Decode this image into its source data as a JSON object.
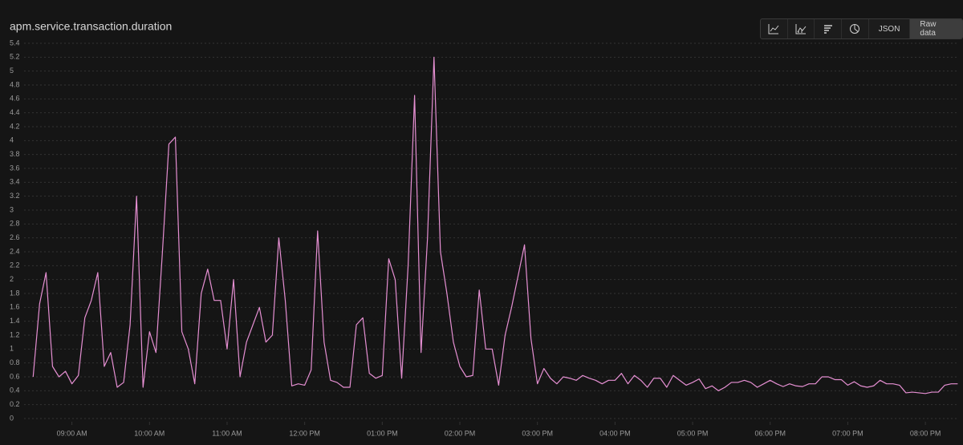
{
  "title": "apm.service.transaction.duration",
  "toolbar": [
    "JSON",
    "Raw data"
  ],
  "chart_data": {
    "type": "line",
    "grid": true,
    "series": [
      {
        "color": "#e58fd2",
        "values": [
          0.6,
          1.65,
          2.1,
          0.75,
          0.6,
          0.68,
          0.5,
          0.62,
          1.45,
          1.7,
          2.1,
          0.75,
          0.95,
          0.45,
          0.52,
          1.35,
          3.2,
          0.45,
          1.25,
          0.95,
          2.4,
          3.95,
          4.05,
          1.25,
          1.0,
          0.5,
          1.8,
          2.15,
          1.7,
          1.7,
          1.0,
          2.0,
          0.6,
          1.1,
          1.35,
          1.6,
          1.1,
          1.2,
          2.6,
          1.7,
          0.47,
          0.5,
          0.48,
          0.7,
          2.7,
          1.1,
          0.55,
          0.52,
          0.45,
          0.45,
          1.35,
          1.45,
          0.65,
          0.58,
          0.62,
          2.3,
          2.0,
          0.58,
          2.2,
          4.65,
          0.95,
          2.6,
          5.2,
          2.4,
          1.8,
          1.1,
          0.75,
          0.6,
          0.62,
          1.85,
          1.0,
          1.0,
          0.48,
          1.2,
          1.6,
          2.05,
          2.5,
          1.15,
          0.5,
          0.72,
          0.58,
          0.5,
          0.6,
          0.58,
          0.55,
          0.62,
          0.58,
          0.55,
          0.5,
          0.55,
          0.55,
          0.65,
          0.5,
          0.62,
          0.55,
          0.45,
          0.58,
          0.58,
          0.45,
          0.62,
          0.55,
          0.48,
          0.52,
          0.57,
          0.43,
          0.47,
          0.4,
          0.45,
          0.52,
          0.52,
          0.55,
          0.52,
          0.45,
          0.5,
          0.55,
          0.5,
          0.46,
          0.5,
          0.47,
          0.46,
          0.5,
          0.5,
          0.6,
          0.6,
          0.56,
          0.56,
          0.48,
          0.53,
          0.47,
          0.45,
          0.47,
          0.55,
          0.5,
          0.5,
          0.48,
          0.37,
          0.38,
          0.37,
          0.36,
          0.38,
          0.38,
          0.48,
          0.5,
          0.5
        ]
      }
    ],
    "x": [
      510,
      515,
      520,
      525,
      530,
      535,
      540,
      545,
      550,
      555,
      560,
      565,
      570,
      575,
      580,
      585,
      590,
      595,
      600,
      605,
      610,
      615,
      620,
      625,
      630,
      635,
      640,
      645,
      650,
      655,
      660,
      665,
      670,
      675,
      680,
      685,
      690,
      695,
      700,
      705,
      710,
      715,
      720,
      725,
      730,
      735,
      740,
      745,
      750,
      755,
      760,
      765,
      770,
      775,
      780,
      785,
      790,
      795,
      800,
      805,
      810,
      815,
      820,
      825,
      830,
      835,
      840,
      845,
      850,
      855,
      860,
      865,
      870,
      875,
      880,
      885,
      890,
      895,
      900,
      905,
      910,
      915,
      920,
      925,
      930,
      935,
      940,
      945,
      950,
      955,
      960,
      965,
      970,
      975,
      980,
      985,
      990,
      995,
      1000,
      1005,
      1010,
      1015,
      1020,
      1025,
      1030,
      1035,
      1040,
      1045,
      1050,
      1055,
      1060,
      1065,
      1070,
      1075,
      1080,
      1085,
      1090,
      1095,
      1100,
      1105,
      1110,
      1115,
      1120,
      1125,
      1130,
      1135,
      1140,
      1145,
      1150,
      1155,
      1160,
      1165,
      1170,
      1175,
      1180,
      1185,
      1190,
      1195,
      1200,
      1205,
      1210,
      1215,
      1220,
      1225
    ],
    "xlim": [
      503,
      1226
    ],
    "xticks": [
      {
        "value": 540,
        "label": "09:00 AM"
      },
      {
        "value": 600,
        "label": "10:00 AM"
      },
      {
        "value": 660,
        "label": "11:00 AM"
      },
      {
        "value": 720,
        "label": "12:00 PM"
      },
      {
        "value": 780,
        "label": "01:00 PM"
      },
      {
        "value": 840,
        "label": "02:00 PM"
      },
      {
        "value": 900,
        "label": "03:00 PM"
      },
      {
        "value": 960,
        "label": "04:00 PM"
      },
      {
        "value": 1020,
        "label": "05:00 PM"
      },
      {
        "value": 1080,
        "label": "06:00 PM"
      },
      {
        "value": 1140,
        "label": "07:00 PM"
      },
      {
        "value": 1200,
        "label": "08:00 PM"
      }
    ],
    "ylim": [
      0,
      5.4
    ],
    "yticks": [
      0,
      0.2,
      0.4,
      0.6,
      0.8,
      1,
      1.2,
      1.4,
      1.6,
      1.8,
      2,
      2.2,
      2.4,
      2.6,
      2.8,
      3,
      3.2,
      3.4,
      3.6,
      3.8,
      4,
      4.2,
      4.4,
      4.6,
      4.8,
      5,
      5.2,
      5.4
    ]
  }
}
